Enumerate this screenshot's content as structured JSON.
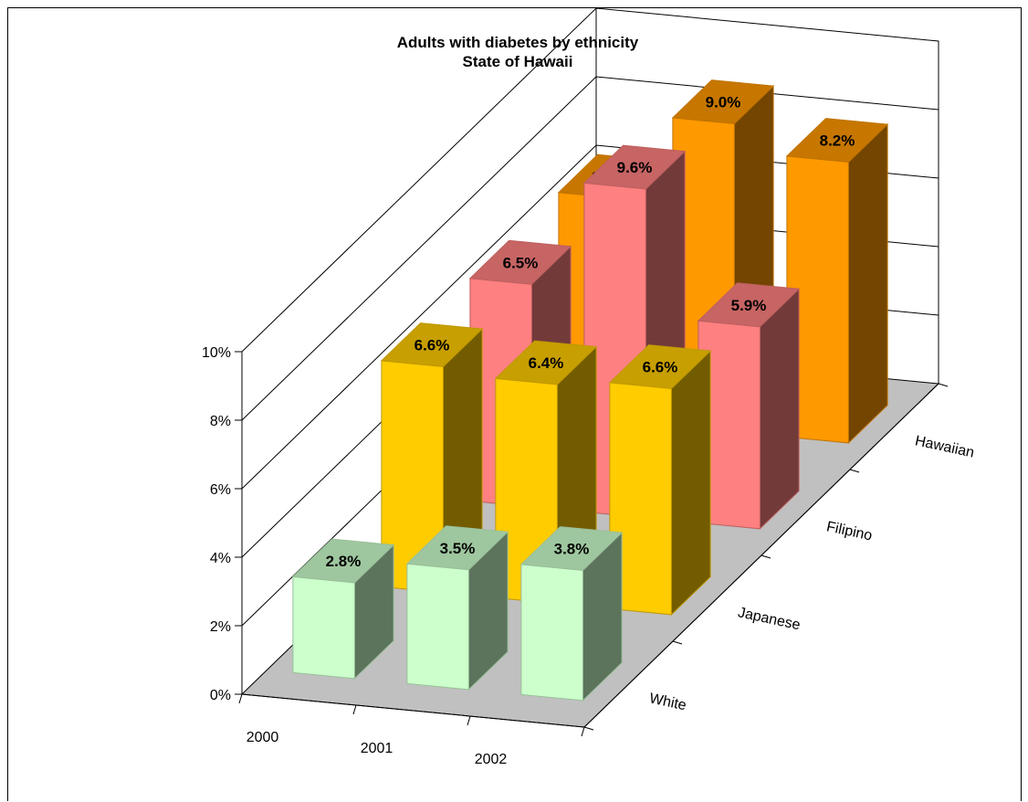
{
  "chart_data": {
    "type": "bar",
    "subtype": "3d-column",
    "title": "Adults with diabetes by ethnicity",
    "subtitle": "State of Hawaii",
    "categories": [
      "2000",
      "2001",
      "2002"
    ],
    "series": [
      {
        "name": "White",
        "values": [
          2.8,
          3.5,
          3.8
        ],
        "labels": [
          "2.8%",
          "3.5%",
          "3.8%"
        ],
        "color": "#CCFFCC"
      },
      {
        "name": "Japanese",
        "values": [
          6.6,
          6.4,
          6.6
        ],
        "labels": [
          "6.6%",
          "6.4%",
          "6.6%"
        ],
        "color": "#FFCC00"
      },
      {
        "name": "Filipino",
        "values": [
          6.5,
          9.6,
          5.9
        ],
        "labels": [
          "6.5%",
          "9.6%",
          "5.9%"
        ],
        "color": "#FF8080"
      },
      {
        "name": "Hawaiian",
        "values": [
          6.5,
          9.0,
          8.2
        ],
        "labels": [
          "6.5%",
          "9.0%",
          "8.2%"
        ],
        "color": "#FF9900"
      }
    ],
    "y_ticks": [
      "0%",
      "2%",
      "4%",
      "6%",
      "8%",
      "10%"
    ],
    "ylim": [
      0,
      10
    ],
    "grid": true,
    "floor_color": "#C0C0C0"
  }
}
